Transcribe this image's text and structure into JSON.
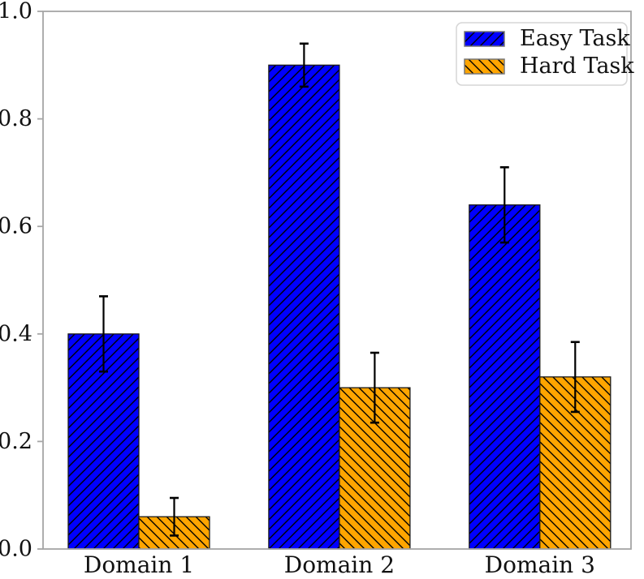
{
  "figure": {
    "background": "#ffffff",
    "spine_color": "#a6a6a6",
    "tick_color": "#a6a6a6",
    "text_color": "#111111"
  },
  "chart_data": {
    "type": "bar",
    "title": "",
    "xlabel": "",
    "ylabel": "",
    "categories": [
      "Domain 1",
      "Domain 2",
      "Domain 3"
    ],
    "series": [
      {
        "name": "Easy Task",
        "color": "#0000ff",
        "hatch": "/",
        "values": [
          0.4,
          0.9,
          0.64
        ],
        "yerr": [
          0.07,
          0.04,
          0.07
        ]
      },
      {
        "name": "Hard Task",
        "color": "#ffa500",
        "hatch": "\\",
        "values": [
          0.06,
          0.3,
          0.32
        ],
        "yerr": [
          0.035,
          0.065,
          0.065
        ]
      }
    ],
    "ylim": [
      0.0,
      1.0
    ],
    "yticks": [
      0.0,
      0.2,
      0.4,
      0.6,
      0.8,
      1.0
    ],
    "ytick_labels": [
      "0.0",
      "0.2",
      "0.4",
      "0.6",
      "0.8",
      "1.0"
    ],
    "grid": false,
    "legend_position": "upper right",
    "bar_edge_color": "#1a1a1a",
    "hatch_color": "#000000",
    "error_bar_color": "#000000"
  }
}
